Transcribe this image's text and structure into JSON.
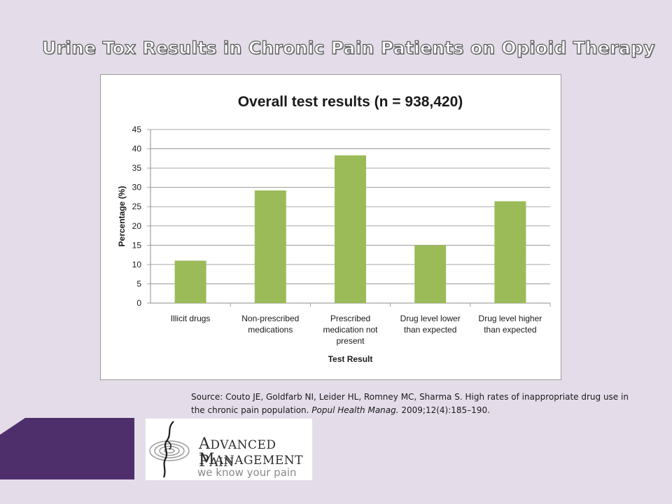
{
  "slide": {
    "title": "Urine Tox Results in Chronic Pain Patients on Opioid Therapy"
  },
  "chart_data": {
    "type": "bar",
    "title": "Overall test results (n = 938,420)",
    "xlabel": "Test Result",
    "ylabel": "Percentage (%)",
    "ylim": [
      0,
      45
    ],
    "yticks": [
      0,
      5,
      10,
      15,
      20,
      25,
      30,
      35,
      40,
      45
    ],
    "grid": true,
    "legend": "none",
    "bar_color": "#9bbb59",
    "categories": [
      [
        "Illicit drugs"
      ],
      [
        "Non-prescribed",
        "medications"
      ],
      [
        "Prescribed",
        "medication not",
        "present"
      ],
      [
        "Drug level lower",
        "than expected"
      ],
      [
        "Drug level higher",
        "than expected"
      ]
    ],
    "values": [
      11,
      29.2,
      38.3,
      15,
      26.4
    ]
  },
  "source": {
    "prefix": "Source: Couto JE, Goldfarb NI, Leider HL, Romney MC, Sharma S. High rates of inappropriate drug use in the chronic pain population. ",
    "journal": "Popul Health Manag.",
    "suffix": " 2009;12(4):185–190."
  },
  "logo": {
    "line1_initial": "A",
    "line1_rest": "DVANCED ",
    "line1_initial2": "P",
    "line1_rest2": "AIN",
    "line2_initial": "M",
    "line2_rest": "ANAGEMENT",
    "tagline": "we know your pain",
    "icon": "figure-swirl-icon"
  },
  "colors": {
    "background": "#e4dde9",
    "accent_purple": "#4f2f6b",
    "bar_green": "#9bbb59"
  }
}
